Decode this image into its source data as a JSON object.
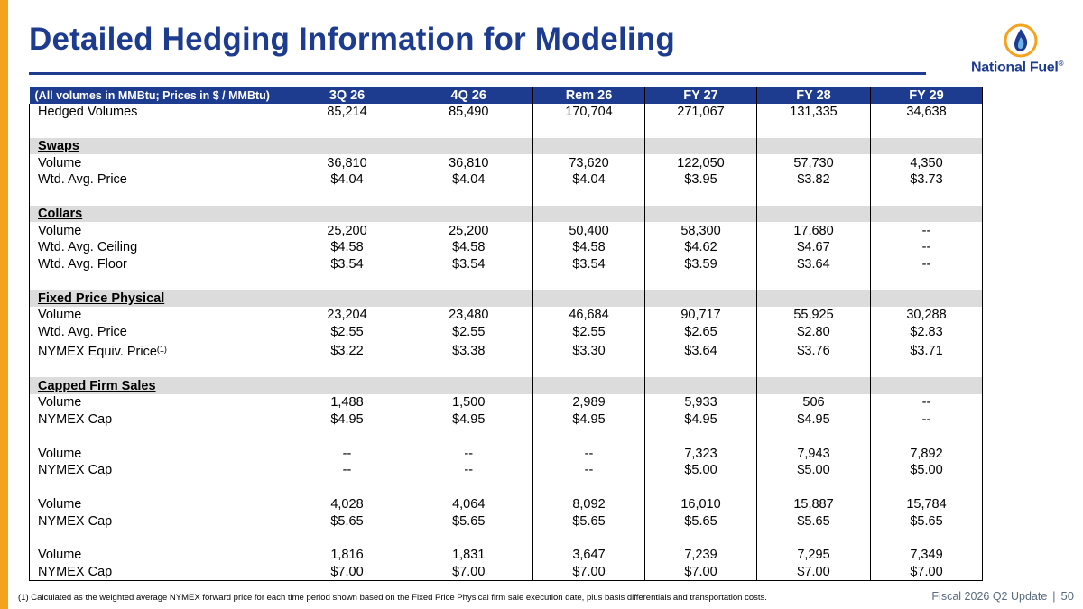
{
  "header": {
    "title": "Detailed Hedging Information for Modeling",
    "logo_text": "National Fuel",
    "logo_mark": "®"
  },
  "colors": {
    "accent": "#f5a21c",
    "brand": "#1d3c8f",
    "section_band": "#dcdcdc"
  },
  "table": {
    "units_label": "(All volumes in MMBtu; Prices in $ / MMBtu)",
    "columns": [
      "3Q 26",
      "4Q 26",
      "Rem 26",
      "FY 27",
      "FY 28",
      "FY 29"
    ],
    "rows": [
      {
        "type": "data",
        "label": "Hedged Volumes",
        "values": [
          "85,214",
          "85,490",
          "170,704",
          "271,067",
          "131,335",
          "34,638"
        ]
      },
      {
        "type": "blank"
      },
      {
        "type": "section",
        "label": "Swaps"
      },
      {
        "type": "data",
        "label": "Volume",
        "values": [
          "36,810",
          "36,810",
          "73,620",
          "122,050",
          "57,730",
          "4,350"
        ]
      },
      {
        "type": "data",
        "label": "Wtd. Avg. Price",
        "values": [
          "$4.04",
          "$4.04",
          "$4.04",
          "$3.95",
          "$3.82",
          "$3.73"
        ]
      },
      {
        "type": "blank"
      },
      {
        "type": "section",
        "label": "Collars"
      },
      {
        "type": "data",
        "label": "Volume",
        "values": [
          "25,200",
          "25,200",
          "50,400",
          "58,300",
          "17,680",
          "--"
        ]
      },
      {
        "type": "data",
        "label": "Wtd. Avg. Ceiling",
        "values": [
          "$4.58",
          "$4.58",
          "$4.58",
          "$4.62",
          "$4.67",
          "--"
        ]
      },
      {
        "type": "data",
        "label": "Wtd. Avg. Floor",
        "values": [
          "$3.54",
          "$3.54",
          "$3.54",
          "$3.59",
          "$3.64",
          "--"
        ]
      },
      {
        "type": "blank"
      },
      {
        "type": "section",
        "label": "Fixed Price Physical"
      },
      {
        "type": "data",
        "label": "Volume",
        "values": [
          "23,204",
          "23,480",
          "46,684",
          "90,717",
          "55,925",
          "30,288"
        ]
      },
      {
        "type": "data",
        "label": "Wtd. Avg. Price",
        "values": [
          "$2.55",
          "$2.55",
          "$2.55",
          "$2.65",
          "$2.80",
          "$2.83"
        ]
      },
      {
        "type": "data",
        "label": "NYMEX Equiv. Price",
        "sup": "(1)",
        "tall": true,
        "values": [
          "$3.22",
          "$3.38",
          "$3.30",
          "$3.64",
          "$3.76",
          "$3.71"
        ]
      },
      {
        "type": "blank"
      },
      {
        "type": "section",
        "label": "Capped Firm Sales"
      },
      {
        "type": "data",
        "label": "Volume",
        "values": [
          "1,488",
          "1,500",
          "2,989",
          "5,933",
          "506",
          "--"
        ]
      },
      {
        "type": "data",
        "label": "NYMEX Cap",
        "values": [
          "$4.95",
          "$4.95",
          "$4.95",
          "$4.95",
          "$4.95",
          "--"
        ]
      },
      {
        "type": "blank"
      },
      {
        "type": "data",
        "label": "Volume",
        "values": [
          "--",
          "--",
          "--",
          "7,323",
          "7,943",
          "7,892"
        ]
      },
      {
        "type": "data",
        "label": "NYMEX Cap",
        "values": [
          "--",
          "--",
          "--",
          "$5.00",
          "$5.00",
          "$5.00"
        ]
      },
      {
        "type": "blank"
      },
      {
        "type": "data",
        "label": "Volume",
        "values": [
          "4,028",
          "4,064",
          "8,092",
          "16,010",
          "15,887",
          "15,784"
        ]
      },
      {
        "type": "data",
        "label": "NYMEX Cap",
        "values": [
          "$5.65",
          "$5.65",
          "$5.65",
          "$5.65",
          "$5.65",
          "$5.65"
        ]
      },
      {
        "type": "blank"
      },
      {
        "type": "data",
        "label": "Volume",
        "values": [
          "1,816",
          "1,831",
          "3,647",
          "7,239",
          "7,295",
          "7,349"
        ]
      },
      {
        "type": "data",
        "label": "NYMEX Cap",
        "values": [
          "$7.00",
          "$7.00",
          "$7.00",
          "$7.00",
          "$7.00",
          "$7.00"
        ]
      }
    ]
  },
  "footnote": "(1) Calculated as the weighted average NYMEX forward price for each time period shown based on the Fixed Price Physical firm sale execution date, plus basis differentials and transportation costs.",
  "footer": {
    "label": "Fiscal 2026 Q2 Update",
    "separator": "|",
    "page": "50"
  }
}
